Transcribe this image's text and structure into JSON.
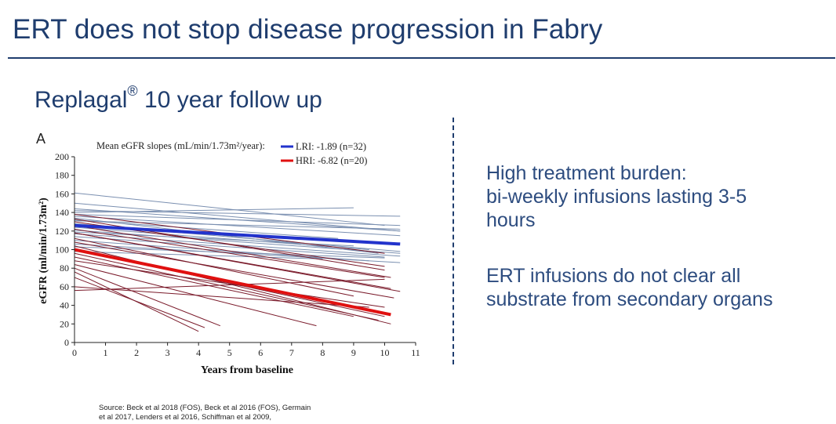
{
  "header": {
    "title": "ERT does not stop disease progression in Fabry",
    "subtitle_main": "Replagal",
    "subtitle_mark": "®",
    "subtitle_rest": " 10 year follow up"
  },
  "bullets": [
    {
      "line1": "High treatment burden:",
      "line2": "bi-weekly infusions lasting 3-5",
      "line3": "hours"
    },
    {
      "line1": "ERT infusions do not clear all",
      "line2": "substrate from secondary organs"
    }
  ],
  "source": {
    "line1": "Source: Beck et al 2018 (FOS), Beck et al 2016 (FOS), Germain",
    "line2": "et al 2017, Lenders et al 2016, Schiffman et al 2009,"
  },
  "colors": {
    "title": "#1f3d6e",
    "lri": "#2233cc",
    "hri": "#e01010",
    "lri_thin": "#7a8fb0",
    "hri_thin": "#7a1a2a"
  },
  "chart_data": {
    "type": "line",
    "panel_label": "A",
    "legend_title": "Mean eGFR slopes (mL/min/1.73m²/year):",
    "xlabel": "Years from baseline",
    "ylabel": "eGFR (ml/min/1.73m²)",
    "xlim": [
      0,
      11
    ],
    "ylim": [
      0,
      200
    ],
    "x_ticks": [
      "0",
      "1",
      "2",
      "3",
      "4",
      "5",
      "6",
      "7",
      "8",
      "9",
      "10",
      "11"
    ],
    "y_ticks": [
      "0",
      "20",
      "40",
      "60",
      "80",
      "100",
      "120",
      "140",
      "160",
      "180",
      "200"
    ],
    "series": [
      {
        "name": "LRI: -1.89 (n=32)",
        "group": "LRI",
        "x": [
          0,
          10.5
        ],
        "y": [
          126,
          106
        ]
      },
      {
        "name": "HRI: -6.82 (n=20)",
        "group": "HRI",
        "x": [
          0,
          10.2
        ],
        "y": [
          100,
          30
        ]
      }
    ],
    "lri_patients": [
      [
        0,
        161,
        10,
        126
      ],
      [
        0,
        150,
        10.5,
        120
      ],
      [
        0,
        144,
        10.5,
        120
      ],
      [
        0,
        140,
        9,
        145
      ],
      [
        0,
        138,
        10.5,
        126
      ],
      [
        0,
        136,
        10.5,
        115
      ],
      [
        0,
        134,
        9.8,
        96
      ],
      [
        0,
        132,
        8.5,
        112
      ],
      [
        0,
        128,
        10.5,
        98
      ],
      [
        0,
        124,
        9.5,
        100
      ],
      [
        0,
        121,
        10.5,
        96
      ],
      [
        0,
        119,
        9,
        104
      ],
      [
        0,
        117,
        10.5,
        93
      ],
      [
        0,
        114,
        10,
        92
      ],
      [
        0,
        110,
        9.5,
        88
      ],
      [
        0,
        106,
        10.5,
        86
      ],
      [
        0,
        103,
        10,
        91
      ],
      [
        0,
        98,
        8,
        90
      ],
      [
        0,
        142,
        10.5,
        136
      ],
      [
        0,
        131,
        10.5,
        122
      ]
    ],
    "hri_patients": [
      [
        0,
        138,
        10,
        96
      ],
      [
        0,
        133,
        10,
        78
      ],
      [
        0,
        130,
        10,
        82
      ],
      [
        0,
        126,
        10.2,
        70
      ],
      [
        0,
        122,
        10,
        70
      ],
      [
        0,
        118,
        10.2,
        58
      ],
      [
        0,
        112,
        9,
        50
      ],
      [
        0,
        108,
        10.3,
        48
      ],
      [
        0,
        104,
        10.2,
        20
      ],
      [
        0,
        100,
        10,
        28
      ],
      [
        0,
        96,
        9.8,
        24
      ],
      [
        0,
        92,
        9,
        28
      ],
      [
        0,
        88,
        10,
        38
      ],
      [
        0,
        84,
        7.8,
        18
      ],
      [
        0,
        80,
        4.7,
        18
      ],
      [
        0,
        76,
        4,
        12
      ],
      [
        0,
        70,
        4.2,
        16
      ],
      [
        0,
        60,
        9.5,
        38
      ],
      [
        0,
        56,
        10,
        68
      ],
      [
        0,
        118,
        10.5,
        55
      ]
    ]
  }
}
